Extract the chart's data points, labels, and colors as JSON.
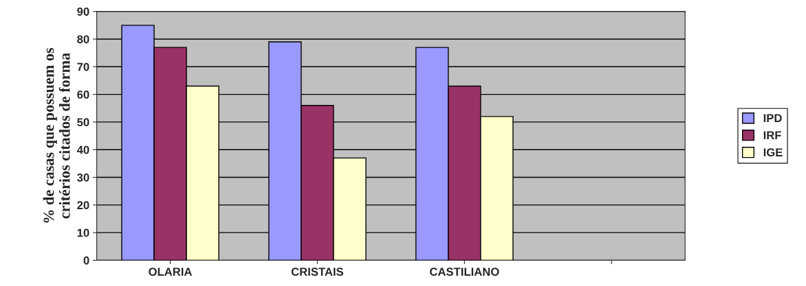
{
  "chart_data": {
    "type": "bar",
    "ylabel": "% de casas que possuem os\ncritérios citados de forma",
    "categories": [
      "OLARIA",
      "CRISTAIS",
      "CASTILIANO",
      null
    ],
    "series": [
      {
        "name": "IPD",
        "color": "#9999ff",
        "values": [
          85,
          79,
          77,
          null
        ]
      },
      {
        "name": "IRF",
        "color": "#993366",
        "values": [
          77,
          56,
          63,
          null
        ]
      },
      {
        "name": "IGE",
        "color": "#ffffcc",
        "values": [
          63,
          37,
          52,
          null
        ]
      }
    ],
    "ylim": [
      0,
      90
    ],
    "yticks": [
      0,
      10,
      20,
      30,
      40,
      50,
      60,
      70,
      80,
      90
    ],
    "grid": "y",
    "legend": "right"
  }
}
